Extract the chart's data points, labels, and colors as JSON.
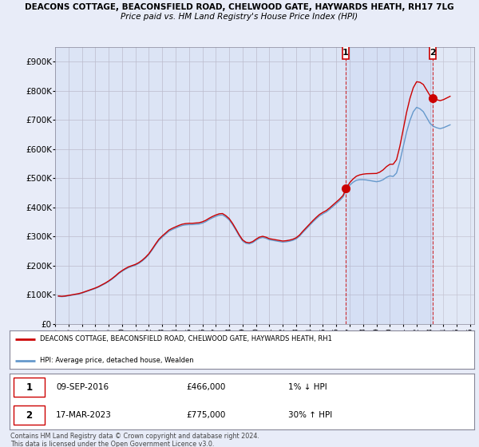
{
  "title1": "DEACONS COTTAGE, BEACONSFIELD ROAD, CHELWOOD GATE, HAYWARDS HEATH, RH17 7LG",
  "title2": "Price paid vs. HM Land Registry's House Price Index (HPI)",
  "yticks": [
    0,
    100000,
    200000,
    300000,
    400000,
    500000,
    600000,
    700000,
    800000,
    900000
  ],
  "ytick_labels": [
    "£0",
    "£100K",
    "£200K",
    "£300K",
    "£400K",
    "£500K",
    "£600K",
    "£700K",
    "£800K",
    "£900K"
  ],
  "xlim_left": 1995.0,
  "xlim_right": 2026.3,
  "ylim_bottom": 0,
  "ylim_top": 950000,
  "hpi_color": "#6699cc",
  "price_color": "#cc0000",
  "marker1_x": 2016.69,
  "marker1_y": 466000,
  "marker2_x": 2023.21,
  "marker2_y": 775000,
  "sale1_date": "09-SEP-2016",
  "sale1_price": "£466,000",
  "sale1_hpi": "1% ↓ HPI",
  "sale2_date": "17-MAR-2023",
  "sale2_price": "£775,000",
  "sale2_hpi": "30% ↑ HPI",
  "legend_label1": "DEACONS COTTAGE, BEACONSFIELD ROAD, CHELWOOD GATE, HAYWARDS HEATH, RH1",
  "legend_label2": "HPI: Average price, detached house, Wealden",
  "footer": "Contains HM Land Registry data © Crown copyright and database right 2024.\nThis data is licensed under the Open Government Licence v3.0.",
  "background_color": "#e8ecf8",
  "plot_bg_color": "#dce4f5",
  "hpi_data_years": [
    1995.25,
    1995.5,
    1995.75,
    1996.0,
    1996.25,
    1996.5,
    1996.75,
    1997.0,
    1997.25,
    1997.5,
    1997.75,
    1998.0,
    1998.25,
    1998.5,
    1998.75,
    1999.0,
    1999.25,
    1999.5,
    1999.75,
    2000.0,
    2000.25,
    2000.5,
    2000.75,
    2001.0,
    2001.25,
    2001.5,
    2001.75,
    2002.0,
    2002.25,
    2002.5,
    2002.75,
    2003.0,
    2003.25,
    2003.5,
    2003.75,
    2004.0,
    2004.25,
    2004.5,
    2004.75,
    2005.0,
    2005.25,
    2005.5,
    2005.75,
    2006.0,
    2006.25,
    2006.5,
    2006.75,
    2007.0,
    2007.25,
    2007.5,
    2007.75,
    2008.0,
    2008.25,
    2008.5,
    2008.75,
    2009.0,
    2009.25,
    2009.5,
    2009.75,
    2010.0,
    2010.25,
    2010.5,
    2010.75,
    2011.0,
    2011.25,
    2011.5,
    2011.75,
    2012.0,
    2012.25,
    2012.5,
    2012.75,
    2013.0,
    2013.25,
    2013.5,
    2013.75,
    2014.0,
    2014.25,
    2014.5,
    2014.75,
    2015.0,
    2015.25,
    2015.5,
    2015.75,
    2016.0,
    2016.25,
    2016.5,
    2016.75,
    2017.0,
    2017.25,
    2017.5,
    2017.75,
    2018.0,
    2018.25,
    2018.5,
    2018.75,
    2019.0,
    2019.25,
    2019.5,
    2019.75,
    2020.0,
    2020.25,
    2020.5,
    2020.75,
    2021.0,
    2021.25,
    2021.5,
    2021.75,
    2022.0,
    2022.25,
    2022.5,
    2022.75,
    2023.0,
    2023.25,
    2023.5,
    2023.75,
    2024.0,
    2024.25,
    2024.5
  ],
  "hpi_data_values": [
    95000,
    94000,
    95000,
    97000,
    99000,
    101000,
    103000,
    106000,
    110000,
    114000,
    118000,
    122000,
    127000,
    133000,
    139000,
    146000,
    154000,
    163000,
    173000,
    181000,
    188000,
    194000,
    198000,
    202000,
    208000,
    216000,
    226000,
    238000,
    254000,
    271000,
    287000,
    298000,
    308000,
    318000,
    324000,
    329000,
    334000,
    338000,
    340000,
    341000,
    341000,
    342000,
    343000,
    346000,
    351000,
    358000,
    364000,
    369000,
    373000,
    374000,
    367000,
    357000,
    341000,
    322000,
    302000,
    285000,
    277000,
    275000,
    279000,
    287000,
    294000,
    297000,
    294000,
    289000,
    287000,
    285000,
    283000,
    281000,
    282000,
    284000,
    287000,
    292000,
    301000,
    314000,
    326000,
    338000,
    350000,
    361000,
    371000,
    378000,
    384000,
    393000,
    403000,
    413000,
    423000,
    435000,
    460000,
    476000,
    486000,
    493000,
    495000,
    495000,
    494000,
    492000,
    490000,
    488000,
    490000,
    495000,
    503000,
    508000,
    506000,
    518000,
    558000,
    608000,
    658000,
    698000,
    728000,
    743000,
    738000,
    728000,
    708000,
    688000,
    678000,
    673000,
    670000,
    673000,
    678000,
    683000
  ]
}
